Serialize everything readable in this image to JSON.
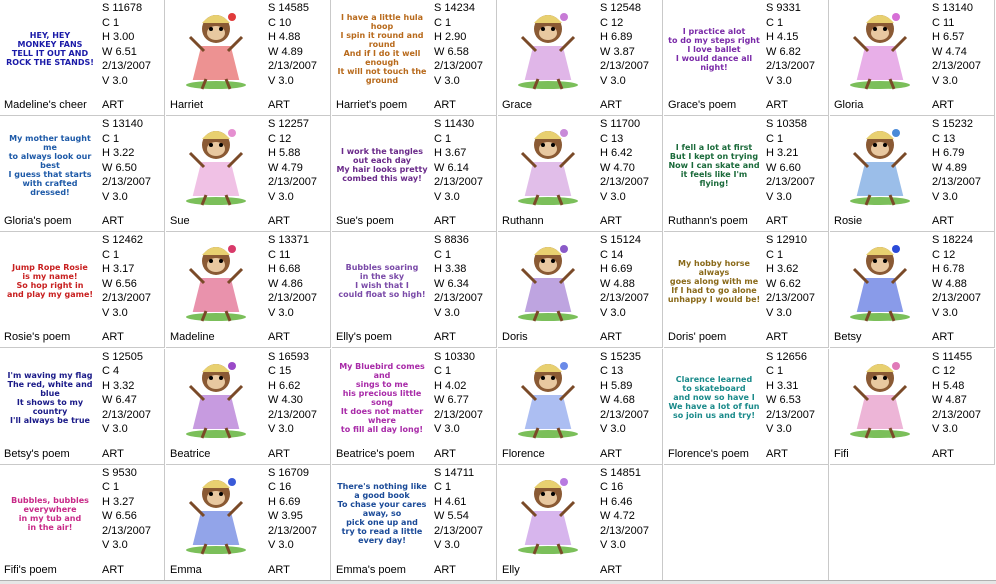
{
  "window": {
    "kind": "embroidery-design-catalog"
  },
  "colors": {
    "grid_line": "#c9c9c9",
    "background": "#ffffff"
  },
  "designs": [
    {
      "name": "Madeline's cheer",
      "stitches": "S  11678",
      "colors": "C  1",
      "height": "H  3.00",
      "width": "W  6.51",
      "date": "2/13/2007",
      "version": "V  3.0",
      "type": "ART",
      "kind": "poem",
      "text": "HEY, HEY\nMONKEY FANS\nTELL IT OUT AND\nROCK THE STANDS!",
      "text_color": "#1a1aa8"
    },
    {
      "name": "Harriet",
      "stitches": "S  14585",
      "colors": "C  10",
      "height": "H  4.88",
      "width": "W  4.89",
      "date": "2/13/2007",
      "version": "V  3.0",
      "type": "ART",
      "kind": "monkey",
      "icon": "monkey-hula-hoop-icon",
      "accent": "#e03a3a"
    },
    {
      "name": "Harriet's poem",
      "stitches": "S  14234",
      "colors": "C  1",
      "height": "H  2.90",
      "width": "W  6.58",
      "date": "2/13/2007",
      "version": "V  3.0",
      "type": "ART",
      "kind": "poem",
      "text": "I have a little hula hoop\nI spin it round and round\nAnd if I do it well enough\nIt will not touch the ground",
      "text_color": "#b86a1c"
    },
    {
      "name": "Grace",
      "stitches": "S  12548",
      "colors": "C  12",
      "height": "H  6.89",
      "width": "W  3.87",
      "date": "2/13/2007",
      "version": "V  3.0",
      "type": "ART",
      "kind": "monkey",
      "icon": "monkey-ballerina-icon",
      "accent": "#c77bd6"
    },
    {
      "name": "Grace's poem",
      "stitches": "S  9331",
      "colors": "C  1",
      "height": "H  4.15",
      "width": "W  6.82",
      "date": "2/13/2007",
      "version": "V  3.0",
      "type": "ART",
      "kind": "poem",
      "text": "I practice alot\nto do my steps right\nI love ballet\nI would dance all night!",
      "text_color": "#7a2aa8"
    },
    {
      "name": "Gloria",
      "stitches": "S  13140",
      "colors": "C  11",
      "height": "H  6.57",
      "width": "W  4.74",
      "date": "2/13/2007",
      "version": "V  3.0",
      "type": "ART",
      "kind": "monkey",
      "icon": "monkey-tennis-icon",
      "accent": "#d66fd6"
    },
    {
      "name": "Gloria's poem",
      "stitches": "S  13140",
      "colors": "C  1",
      "height": "H  3.22",
      "width": "W  6.50",
      "date": "2/13/2007",
      "version": "V  3.0",
      "type": "ART",
      "kind": "poem",
      "text": "My mother taught me\nto always look our best\nI guess that starts\nwith crafted dressed!",
      "text_color": "#1e5aa8"
    },
    {
      "name": "Sue",
      "stitches": "S  12257",
      "colors": "C  12",
      "height": "H  5.88",
      "width": "W  4.79",
      "date": "2/13/2007",
      "version": "V  3.0",
      "type": "ART",
      "kind": "monkey",
      "icon": "monkey-pink-dress-icon",
      "accent": "#e58fd0"
    },
    {
      "name": "Sue's poem",
      "stitches": "S  11430",
      "colors": "C  1",
      "height": "H  3.67",
      "width": "W  6.14",
      "date": "2/13/2007",
      "version": "V  3.0",
      "type": "ART",
      "kind": "poem",
      "text": "I work the tangles\nout each day\nMy hair looks pretty\ncombed this way!",
      "text_color": "#6a2a8a"
    },
    {
      "name": "Ruthann",
      "stitches": "S  11700",
      "colors": "C  13",
      "height": "H  6.42",
      "width": "W  4.70",
      "date": "2/13/2007",
      "version": "V  3.0",
      "type": "ART",
      "kind": "monkey",
      "icon": "monkey-skating-icon",
      "accent": "#c98ad8"
    },
    {
      "name": "Ruthann's poem",
      "stitches": "S  10358",
      "colors": "C  1",
      "height": "H  3.21",
      "width": "W  6.60",
      "date": "2/13/2007",
      "version": "V  3.0",
      "type": "ART",
      "kind": "poem",
      "text": "I fell a lot at first\nBut I kept on trying\nNow I can skate and\nit feels like I'm flying!",
      "text_color": "#1a6a3a"
    },
    {
      "name": "Rosie",
      "stitches": "S  15232",
      "colors": "C  13",
      "height": "H  6.79",
      "width": "W  4.89",
      "date": "2/13/2007",
      "version": "V  3.0",
      "type": "ART",
      "kind": "monkey",
      "icon": "monkey-jump-rope-icon",
      "accent": "#4a8ad8"
    },
    {
      "name": "Rosie's poem",
      "stitches": "S  12462",
      "colors": "C  1",
      "height": "H  3.17",
      "width": "W  6.56",
      "date": "2/13/2007",
      "version": "V  3.0",
      "type": "ART",
      "kind": "poem",
      "text": "Jump Rope Rosie\nis my name!\nSo hop right in\nand play my game!",
      "text_color": "#c82020"
    },
    {
      "name": "Madeline",
      "stitches": "S  13371",
      "colors": "C  11",
      "height": "H  6.68",
      "width": "W  4.86",
      "date": "2/13/2007",
      "version": "V  3.0",
      "type": "ART",
      "kind": "monkey",
      "icon": "monkey-cheerleader-icon",
      "accent": "#d83a6a"
    },
    {
      "name": "Elly's poem",
      "stitches": "S  8836",
      "colors": "C  1",
      "height": "H  3.38",
      "width": "W  6.34",
      "date": "2/13/2007",
      "version": "V  3.0",
      "type": "ART",
      "kind": "poem",
      "text": "Bubbles soaring\nin the sky\nI wish that I\ncould float so high!",
      "text_color": "#7a4aa8"
    },
    {
      "name": "Doris",
      "stitches": "S  15124",
      "colors": "C  14",
      "height": "H  6.69",
      "width": "W  4.88",
      "date": "2/13/2007",
      "version": "V  3.0",
      "type": "ART",
      "kind": "monkey",
      "icon": "monkey-hobby-horse-icon",
      "accent": "#8a5ac8"
    },
    {
      "name": "Doris' poem",
      "stitches": "S  12910",
      "colors": "C  1",
      "height": "H  3.62",
      "width": "W  6.62",
      "date": "2/13/2007",
      "version": "V  3.0",
      "type": "ART",
      "kind": "poem",
      "text": "My hobby horse\nalways\ngoes along with me\nIf I had to go alone\nunhappy I would be!",
      "text_color": "#8a6a1a"
    },
    {
      "name": "Betsy",
      "stitches": "S  18224",
      "colors": "C  12",
      "height": "H  6.78",
      "width": "W  4.88",
      "date": "2/13/2007",
      "version": "V  3.0",
      "type": "ART",
      "kind": "monkey",
      "icon": "monkey-flag-icon",
      "accent": "#2a4ad8"
    },
    {
      "name": "Betsy's poem",
      "stitches": "S  12505",
      "colors": "C  4",
      "height": "H  3.32",
      "width": "W  6.47",
      "date": "2/13/2007",
      "version": "V  3.0",
      "type": "ART",
      "kind": "poem",
      "text": "I'm waving my flag\nThe red, white and blue\nIt shows to my country\nI'll always be true",
      "text_color": "#1a1a88"
    },
    {
      "name": "Beatrice",
      "stitches": "S  16593",
      "colors": "C  15",
      "height": "H  6.62",
      "width": "W  4.30",
      "date": "2/13/2007",
      "version": "V  3.0",
      "type": "ART",
      "kind": "monkey",
      "icon": "monkey-vine-bird-icon",
      "accent": "#9a4ac8"
    },
    {
      "name": "Beatrice's poem",
      "stitches": "S  10330",
      "colors": "C  1",
      "height": "H  4.02",
      "width": "W  6.77",
      "date": "2/13/2007",
      "version": "V  3.0",
      "type": "ART",
      "kind": "poem",
      "text": "My Bluebird comes and\nsings to me\nhis precious little song\nIt does not matter where\nto fill all day long!",
      "text_color": "#a82aa8"
    },
    {
      "name": "Florence",
      "stitches": "S  15235",
      "colors": "C  13",
      "height": "H  5.89",
      "width": "W  4.68",
      "date": "2/13/2007",
      "version": "V  3.0",
      "type": "ART",
      "kind": "monkey",
      "icon": "monkey-skateboard-icon",
      "accent": "#6a8ae8"
    },
    {
      "name": "Florence's poem",
      "stitches": "S  12656",
      "colors": "C  1",
      "height": "H  3.31",
      "width": "W  6.53",
      "date": "2/13/2007",
      "version": "V  3.0",
      "type": "ART",
      "kind": "poem",
      "text": "Clarence learned\nto skateboard\nand now so have I\nWe have a lot of fun\nso join us and try!",
      "text_color": "#1a8a8a"
    },
    {
      "name": "Fifi",
      "stitches": "S  11455",
      "colors": "C  12",
      "height": "H  5.48",
      "width": "W  4.87",
      "date": "2/13/2007",
      "version": "V  3.0",
      "type": "ART",
      "kind": "monkey",
      "icon": "monkey-bathtub-icon",
      "accent": "#e07ab8"
    },
    {
      "name": "Fifi's poem",
      "stitches": "S  9530",
      "colors": "C  1",
      "height": "H  3.27",
      "width": "W  6.56",
      "date": "2/13/2007",
      "version": "V  3.0",
      "type": "ART",
      "kind": "poem",
      "text": "Bubbles, bubbles\neverywhere\nin my tub and\nin the air!",
      "text_color": "#c82a88"
    },
    {
      "name": "Emma",
      "stitches": "S  16709",
      "colors": "C  16",
      "height": "H  6.69",
      "width": "W  3.95",
      "date": "2/13/2007",
      "version": "V  3.0",
      "type": "ART",
      "kind": "monkey",
      "icon": "monkey-reading-book-icon",
      "accent": "#3a5ad8"
    },
    {
      "name": "Emma's poem",
      "stitches": "S  14711",
      "colors": "C  1",
      "height": "H  4.61",
      "width": "W  5.54",
      "date": "2/13/2007",
      "version": "V  3.0",
      "type": "ART",
      "kind": "poem",
      "text": "There's nothing like\na good book\nTo chase your cares\naway, so\npick one up and\ntry to read a little\nevery day!",
      "text_color": "#1a4a98"
    },
    {
      "name": "Elly",
      "stitches": "S  14851",
      "colors": "C  16",
      "height": "H  6.46",
      "width": "W  4.72",
      "date": "2/13/2007",
      "version": "V  3.0",
      "type": "ART",
      "kind": "monkey",
      "icon": "monkey-bubbles-vine-icon",
      "accent": "#b87ae0"
    }
  ]
}
